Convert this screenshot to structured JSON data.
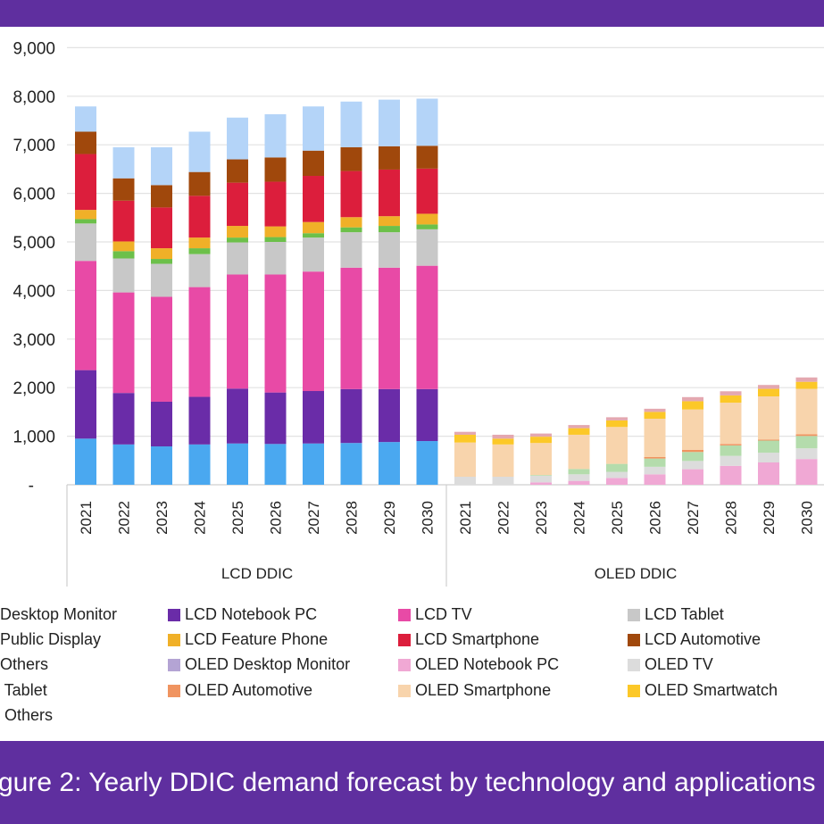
{
  "caption": "gure 2: Yearly DDIC demand forecast by technology and applications",
  "chart_data": {
    "type": "stacked-bar",
    "ylim": [
      0,
      9000
    ],
    "y_ticks": [
      "-",
      "1,000",
      "2,000",
      "3,000",
      "4,000",
      "5,000",
      "6,000",
      "7,000",
      "8,000",
      "9,000"
    ],
    "grid": true,
    "legend_position": "bottom",
    "groups": [
      {
        "label": "LCD DDIC",
        "categories": [
          "2021",
          "2022",
          "2023",
          "2024",
          "2025",
          "2026",
          "2027",
          "2028",
          "2029",
          "2030"
        ],
        "series": [
          {
            "name": "LCD Desktop Monitor",
            "color": "#4aa8f0",
            "values": [
              950,
              830,
              790,
              830,
              850,
              840,
              850,
              860,
              880,
              900
            ]
          },
          {
            "name": "LCD Notebook PC",
            "color": "#6a2ca8",
            "values": [
              1410,
              1060,
              920,
              980,
              1130,
              1060,
              1080,
              1110,
              1090,
              1070
            ]
          },
          {
            "name": "LCD TV",
            "color": "#e84aa6",
            "values": [
              2250,
              2070,
              2160,
              2260,
              2350,
              2430,
              2460,
              2500,
              2500,
              2540
            ]
          },
          {
            "name": "LCD Tablet",
            "color": "#c8c8c8",
            "values": [
              770,
              700,
              680,
              680,
              660,
              670,
              700,
              730,
              730,
              750
            ]
          },
          {
            "name": "LCD Public Display",
            "color": "#6cc04a",
            "values": [
              90,
              150,
              100,
              120,
              100,
              100,
              90,
              100,
              130,
              100
            ]
          },
          {
            "name": "LCD Feature Phone",
            "color": "#f0b028",
            "values": [
              190,
              200,
              220,
              220,
              240,
              220,
              230,
              210,
              200,
              220
            ]
          },
          {
            "name": "LCD Smartphone",
            "color": "#dc1e3c",
            "values": [
              1150,
              840,
              840,
              860,
              890,
              920,
              950,
              950,
              960,
              930
            ]
          },
          {
            "name": "LCD Automotive",
            "color": "#a0480c",
            "values": [
              460,
              460,
              460,
              490,
              480,
              500,
              520,
              490,
              480,
              470
            ]
          },
          {
            "name": "LCD Others",
            "color": "#b4d4f8",
            "values": [
              520,
              640,
              780,
              830,
              860,
              890,
              910,
              940,
              960,
              970
            ]
          }
        ]
      },
      {
        "label": "OLED DDIC",
        "categories": [
          "2021",
          "2022",
          "2023",
          "2024",
          "2025",
          "2026",
          "2027",
          "2028",
          "2029",
          "2030"
        ],
        "series": [
          {
            "name": "OLED Desktop Monitor",
            "color": "#b4a4d4",
            "values": [
              0,
              0,
              0,
              0,
              0,
              0,
              0,
              0,
              0,
              0
            ]
          },
          {
            "name": "OLED Notebook PC",
            "color": "#f0a8d4",
            "values": [
              0,
              0,
              50,
              80,
              140,
              215,
              320,
              390,
              460,
              530
            ]
          },
          {
            "name": "OLED TV",
            "color": "#dcdcdc",
            "values": [
              165,
              165,
              135,
              135,
              125,
              155,
              170,
              205,
              200,
              220
            ]
          },
          {
            "name": "OLED Tablet",
            "color": "#b4dcac",
            "values": [
              0,
              0,
              15,
              110,
              165,
              170,
              185,
              215,
              250,
              255
            ]
          },
          {
            "name": "OLED Automotive",
            "color": "#f09460",
            "values": [
              0,
              0,
              0,
              0,
              0,
              30,
              45,
              30,
              20,
              35
            ]
          },
          {
            "name": "OLED Smartphone",
            "color": "#f8d4ac",
            "values": [
              705,
              665,
              660,
              705,
              760,
              790,
              830,
              850,
              890,
              935
            ]
          },
          {
            "name": "OLED Smartwatch",
            "color": "#fcc828",
            "values": [
              160,
              120,
              130,
              135,
              135,
              140,
              170,
              150,
              155,
              145
            ]
          },
          {
            "name": "OLED Others",
            "color": "#e4a8b0",
            "values": [
              60,
              80,
              65,
              65,
              65,
              65,
              85,
              85,
              80,
              90
            ]
          }
        ]
      }
    ]
  },
  "legend": {
    "rows": [
      [
        {
          "label": "Desktop Monitor",
          "series": "LCD Desktop Monitor"
        },
        {
          "label": "LCD Notebook PC",
          "series": "LCD Notebook PC"
        },
        {
          "label": "LCD TV",
          "series": "LCD TV"
        },
        {
          "label": "LCD Tablet",
          "series": "LCD Tablet"
        }
      ],
      [
        {
          "label": "Public Display",
          "series": "LCD Public Display"
        },
        {
          "label": "LCD Feature Phone",
          "series": "LCD Feature Phone"
        },
        {
          "label": "LCD Smartphone",
          "series": "LCD Smartphone"
        },
        {
          "label": "LCD Automotive",
          "series": "LCD Automotive"
        }
      ],
      [
        {
          "label": "Others",
          "series": "LCD Others"
        },
        {
          "label": "OLED Desktop Monitor",
          "series": "OLED Desktop Monitor"
        },
        {
          "label": "OLED Notebook PC",
          "series": "OLED Notebook PC"
        },
        {
          "label": "OLED TV",
          "series": "OLED TV"
        }
      ],
      [
        {
          "label": " Tablet",
          "series": "OLED Tablet"
        },
        {
          "label": "OLED Automotive",
          "series": "OLED Automotive"
        },
        {
          "label": "OLED Smartphone",
          "series": "OLED Smartphone"
        },
        {
          "label": "OLED Smartwatch",
          "series": "OLED Smartwatch"
        }
      ],
      [
        {
          "label": " Others",
          "series": "OLED Others"
        }
      ]
    ]
  }
}
